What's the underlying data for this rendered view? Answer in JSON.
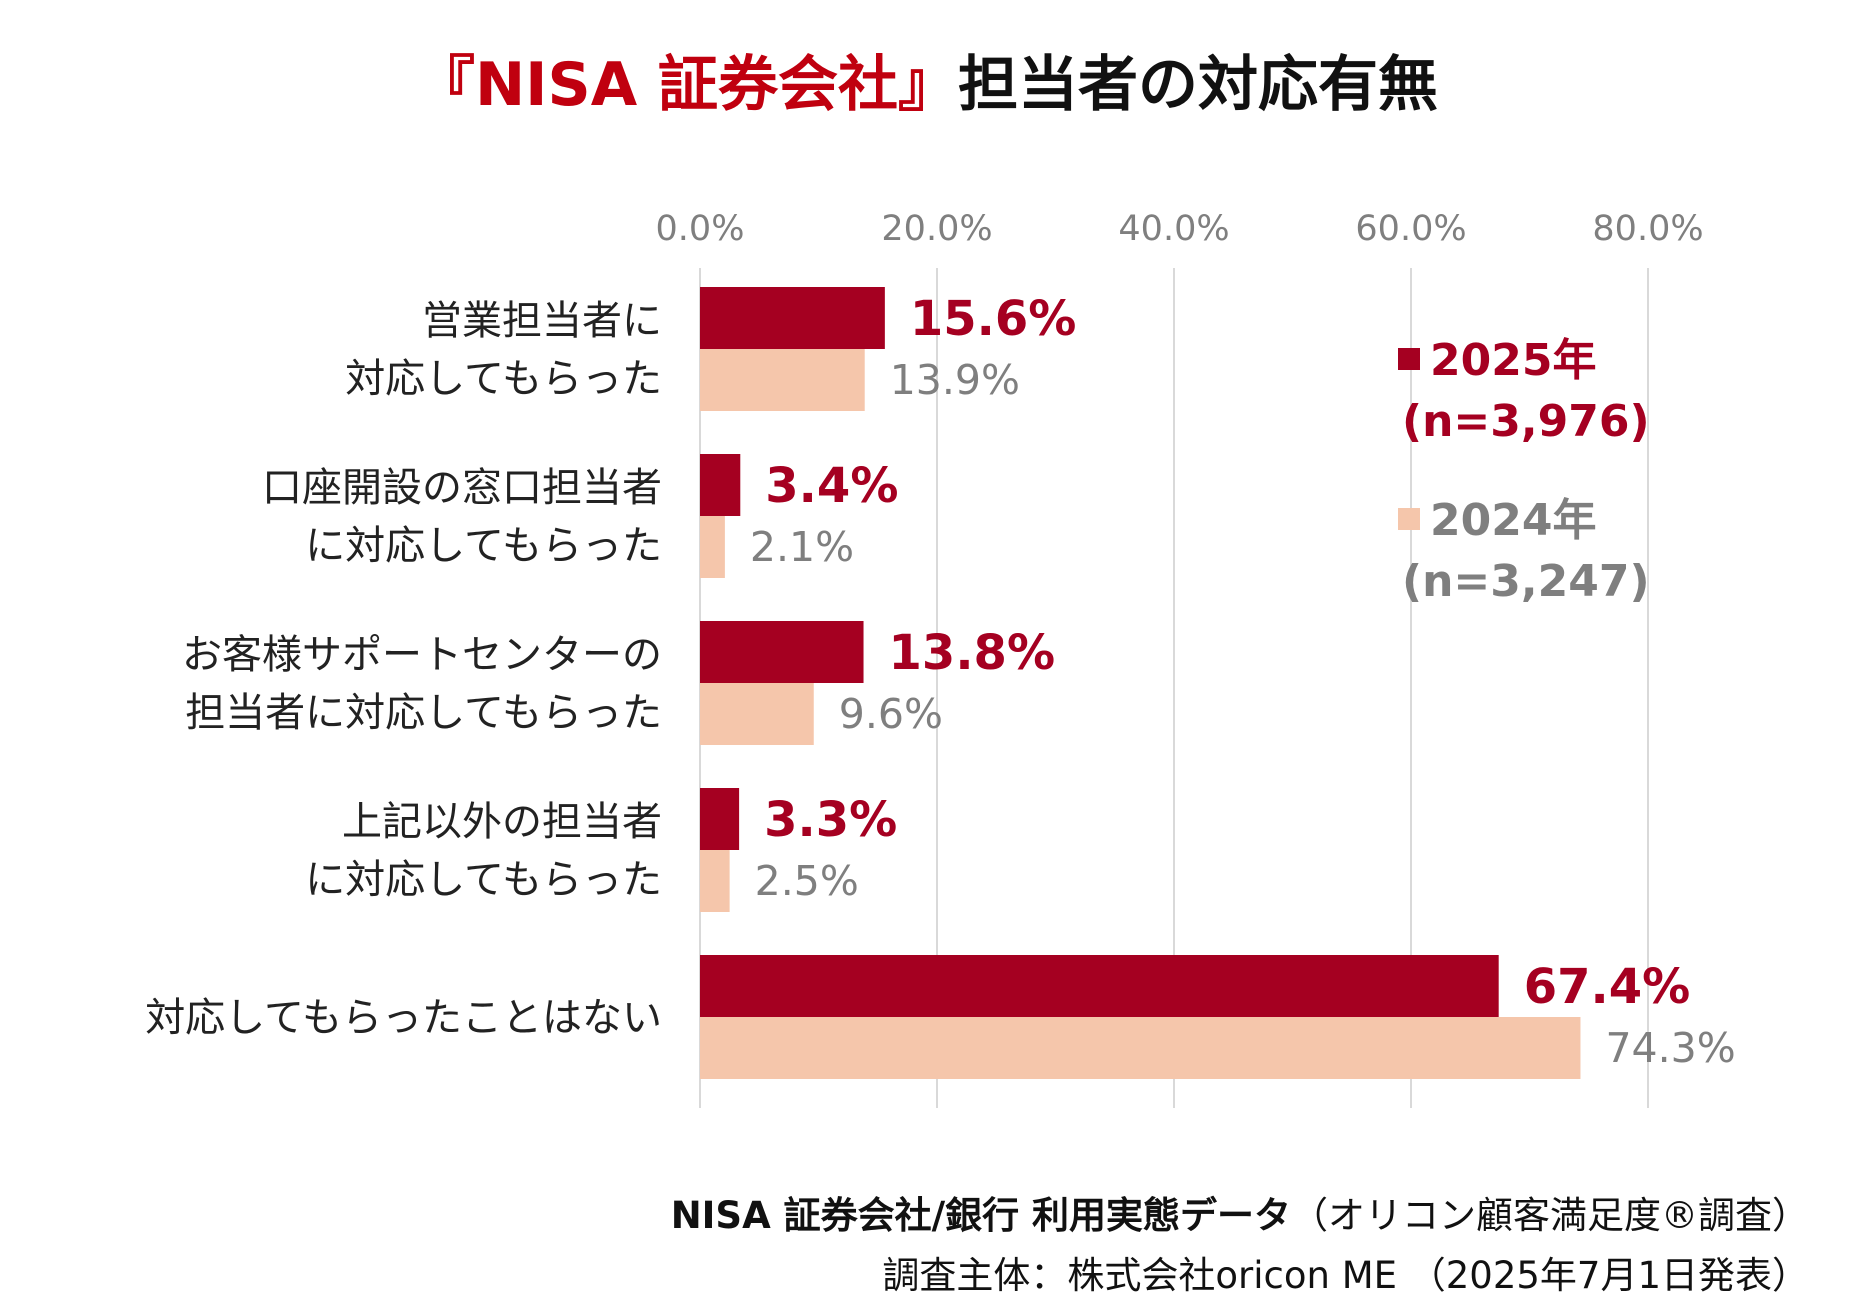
{
  "title": {
    "accent": "『NISA 証券会社』",
    "rest": "担当者の対応有無"
  },
  "chart_data": {
    "type": "bar",
    "orientation": "horizontal",
    "categories": [
      [
        "営業担当者に",
        "対応してもらった"
      ],
      [
        "口座開設の窓口担当者",
        "に対応してもらった"
      ],
      [
        "お客様サポートセンターの",
        "担当者に対応してもらった"
      ],
      [
        "上記以外の担当者",
        "に対応してもらった"
      ],
      [
        "対応してもらったことはない"
      ]
    ],
    "series": [
      {
        "name": "2025年",
        "sample": "(n=3,976)",
        "values": [
          15.6,
          3.4,
          13.8,
          3.3,
          67.4
        ],
        "labels": [
          "15.6%",
          "3.4%",
          "13.8%",
          "3.3%",
          "67.4%"
        ],
        "color": "#a50021",
        "label_color": "#a50021",
        "label_weight": "bold"
      },
      {
        "name": "2024年",
        "sample": "(n=3,247)",
        "values": [
          13.9,
          2.1,
          9.6,
          2.5,
          74.3
        ],
        "labels": [
          "13.9%",
          "2.1%",
          "9.6%",
          "2.5%",
          "74.3%"
        ],
        "color": "#f5c6ab",
        "label_color": "#7f7f7f",
        "label_weight": "normal"
      }
    ],
    "xlim": [
      0,
      80
    ],
    "x_ticks": [
      "0.0%",
      "20.0%",
      "40.0%",
      "60.0%",
      "80.0%"
    ],
    "tick_values": [
      0,
      20,
      40,
      60,
      80
    ],
    "axis_position": "top",
    "grid": true,
    "legend_position": "right"
  },
  "footer": {
    "line1_bold": "NISA 証券会社/銀行 利用実態データ",
    "line1_rest": "（オリコン顧客満足度®調査）",
    "line2": "調査主体：株式会社oricon ME （2025年7月1日発表）"
  },
  "colors": {
    "accent": "#c0000f",
    "grid": "#d9d9d9",
    "tick_text": "#7f7f7f"
  }
}
